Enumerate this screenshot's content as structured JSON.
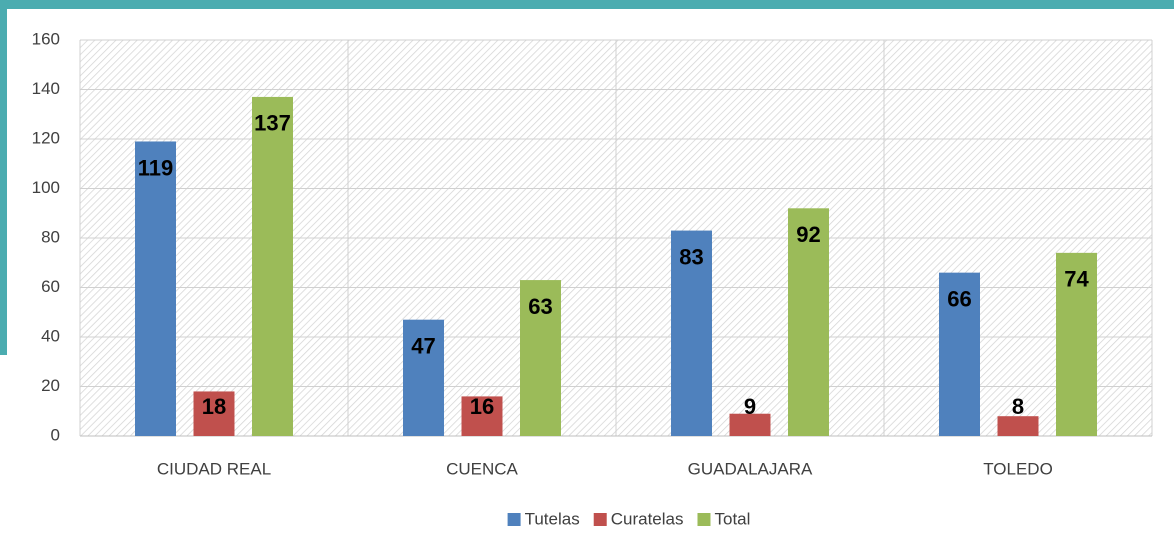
{
  "chart_data": {
    "type": "bar",
    "categories": [
      "CIUDAD REAL",
      "CUENCA",
      "GUADALAJARA",
      "TOLEDO"
    ],
    "series": [
      {
        "name": "Tutelas",
        "color": "#4f81bd",
        "values": [
          119,
          47,
          83,
          66
        ]
      },
      {
        "name": "Curatelas",
        "color": "#c0504d",
        "values": [
          18,
          16,
          9,
          8
        ]
      },
      {
        "name": "Total",
        "color": "#9bbb59",
        "values": [
          137,
          63,
          92,
          74
        ]
      }
    ],
    "ylim": [
      0,
      160
    ],
    "yticks": [
      0,
      20,
      40,
      60,
      80,
      100,
      120,
      140,
      160
    ],
    "grid": true
  }
}
